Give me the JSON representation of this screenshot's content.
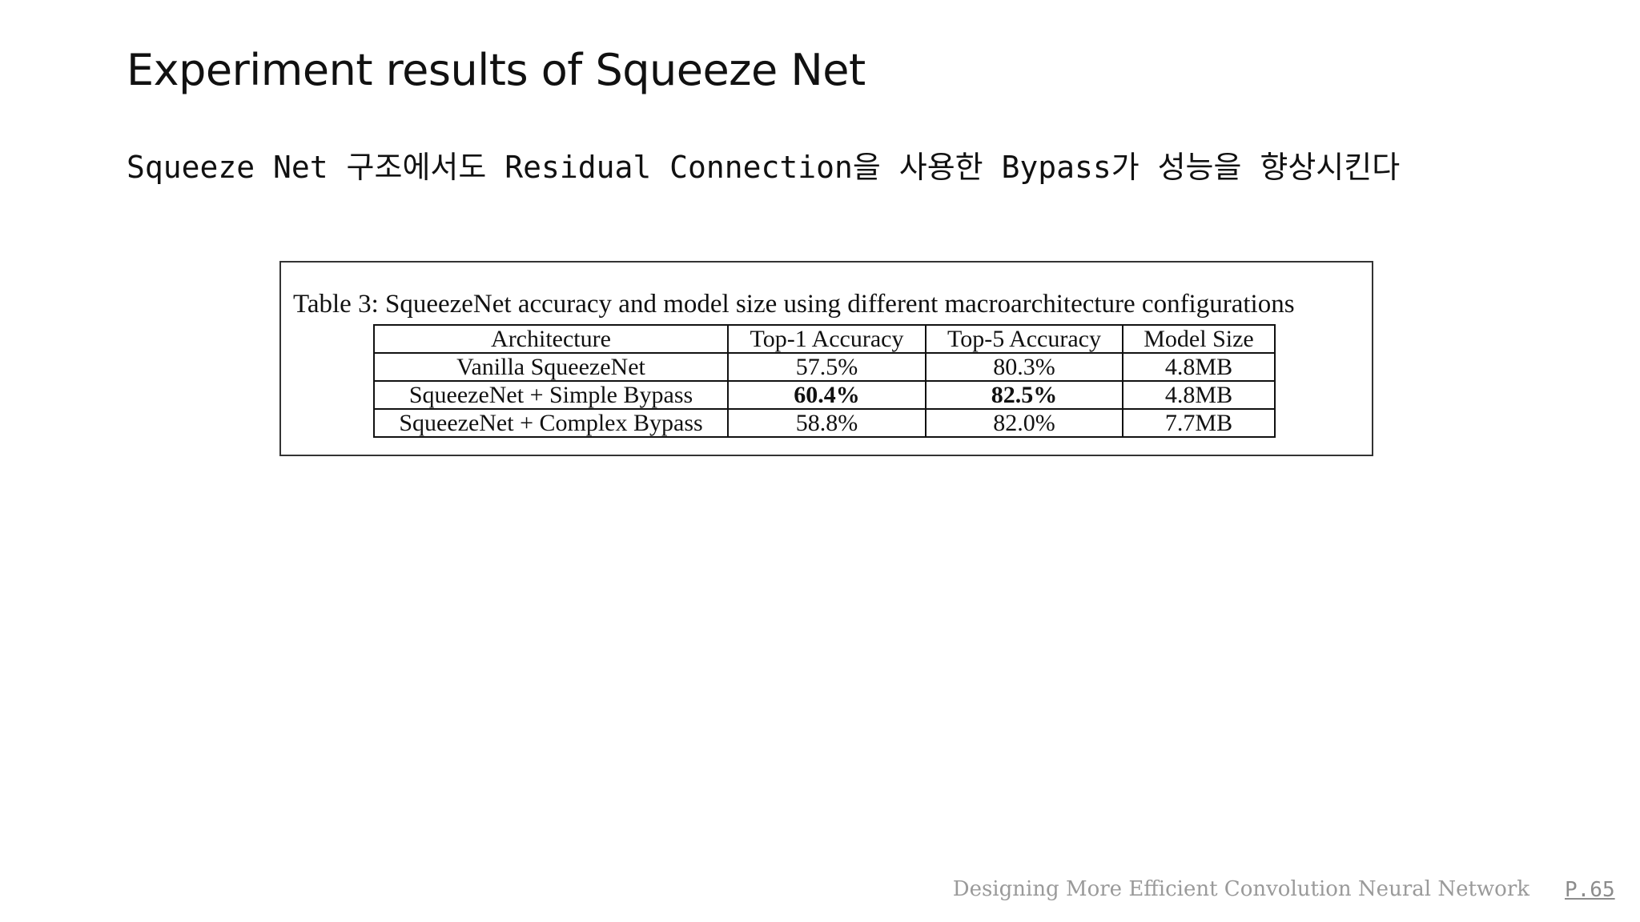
{
  "slide": {
    "title": "Experiment results of Squeeze Net",
    "subtitle": "Squeeze Net 구조에서도 Residual Connection을 사용한 Bypass가 성능을 향상시킨다"
  },
  "table": {
    "caption": "Table 3: SqueezeNet accuracy and model size using different macroarchitecture configurations",
    "headers": [
      "Architecture",
      "Top-1 Accuracy",
      "Top-5 Accuracy",
      "Model Size"
    ],
    "rows": [
      [
        "Vanilla SqueezeNet",
        "57.5%",
        "80.3%",
        "4.8MB"
      ],
      [
        "SqueezeNet + Simple Bypass",
        "60.4%",
        "82.5%",
        "4.8MB"
      ],
      [
        "SqueezeNet + Complex Bypass",
        "58.8%",
        "82.0%",
        "7.7MB"
      ]
    ]
  },
  "footer": {
    "text": "Designing More Efficient Convolution Neural Network",
    "page": "P.65"
  }
}
